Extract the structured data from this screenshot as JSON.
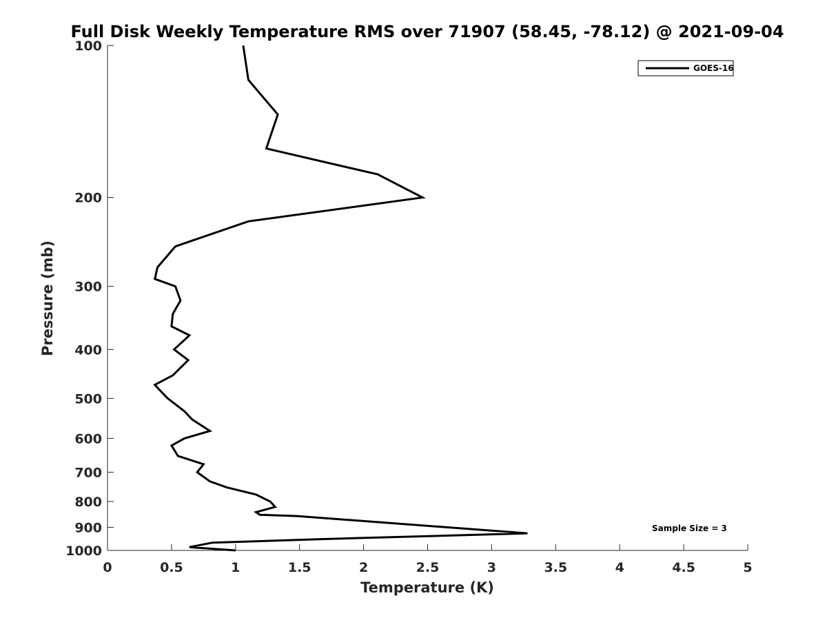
{
  "chart_data": {
    "type": "line",
    "title": "Full Disk Weekly Temperature RMS over 71907 (58.45, -78.12) @ 2021-09-04",
    "xlabel": "Temperature (K)",
    "ylabel": "Pressure (mb)",
    "xlim": [
      0,
      5
    ],
    "ylim": [
      100,
      1000
    ],
    "yscale": "log",
    "y_reversed": true,
    "grid": false,
    "legend_position": "top-right",
    "x_ticks": [
      "0",
      "0.5",
      "1",
      "1.5",
      "2",
      "2.5",
      "3",
      "3.5",
      "4",
      "4.5",
      "5"
    ],
    "x_tick_values": [
      0,
      0.5,
      1,
      1.5,
      2,
      2.5,
      3,
      3.5,
      4,
      4.5,
      5
    ],
    "y_ticks": [
      "100",
      "200",
      "300",
      "400",
      "500",
      "600",
      "700",
      "800",
      "900",
      "1000"
    ],
    "y_tick_values": [
      100,
      200,
      300,
      400,
      500,
      600,
      700,
      800,
      900,
      1000
    ],
    "annotation": "Sample Size = 3",
    "series": [
      {
        "name": "GOES-16",
        "color": "#000000",
        "x": [
          1.06,
          1.1,
          1.33,
          1.24,
          2.11,
          2.46,
          1.1,
          0.53,
          0.39,
          0.37,
          0.53,
          0.57,
          0.51,
          0.5,
          0.64,
          0.52,
          0.63,
          0.51,
          0.37,
          0.42,
          0.47,
          0.6,
          0.66,
          0.8,
          0.6,
          0.5,
          0.55,
          0.75,
          0.7,
          0.8,
          0.93,
          1.16,
          1.27,
          1.31,
          1.16,
          1.19,
          1.48,
          3.28,
          1.65,
          0.82,
          0.64,
          1.0
        ],
        "y": [
          100,
          117,
          137,
          160,
          180,
          200,
          223,
          250,
          275,
          290,
          300,
          320,
          340,
          360,
          375,
          400,
          420,
          450,
          470,
          485,
          500,
          530,
          550,
          580,
          600,
          620,
          650,
          675,
          700,
          730,
          750,
          775,
          800,
          820,
          840,
          850,
          855,
          925,
          950,
          965,
          985,
          1000
        ]
      }
    ]
  }
}
